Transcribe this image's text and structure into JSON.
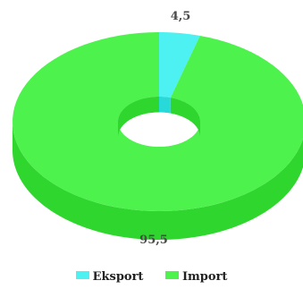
{
  "chart_data": {
    "type": "pie",
    "style": "3d-donut",
    "categories": [
      "Eksport",
      "Import"
    ],
    "values": [
      4.5,
      95.5
    ],
    "data_labels": [
      "4,5",
      "95,5"
    ],
    "colors": {
      "Eksport": {
        "top": "#4df1f1",
        "side": "#27d9d9"
      },
      "Import": {
        "top": "#4df24d",
        "side": "#2ed62e"
      }
    },
    "legend_position": "bottom"
  },
  "legend": [
    {
      "label": "Eksport",
      "color": "#4df1f1"
    },
    {
      "label": "Import",
      "color": "#4df24d"
    }
  ]
}
